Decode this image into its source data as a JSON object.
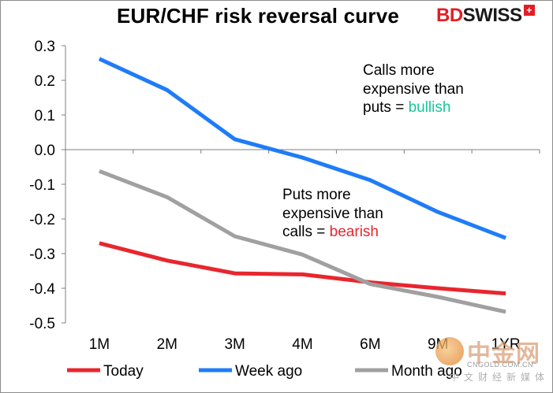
{
  "chart_data": {
    "type": "line",
    "title": "EUR/CHF risk reversal curve",
    "categories": [
      "1M",
      "2M",
      "3M",
      "4M",
      "6M",
      "9M",
      "1YR"
    ],
    "ylim": [
      -0.5,
      0.3
    ],
    "yticks": [
      "0.3",
      "0.2",
      "0.1",
      "0.0",
      "-0.1",
      "-0.2",
      "-0.3",
      "-0.4",
      "-0.5"
    ],
    "ytick_values": [
      0.3,
      0.2,
      0.1,
      0.0,
      -0.1,
      -0.2,
      -0.3,
      -0.4,
      -0.5
    ],
    "series": [
      {
        "name": "Today",
        "color": "#e8262e",
        "values": [
          -0.27,
          -0.32,
          -0.357,
          -0.36,
          -0.383,
          -0.4,
          -0.415
        ]
      },
      {
        "name": "Week ago",
        "color": "#1f7cf8",
        "values": [
          0.262,
          0.172,
          0.03,
          -0.023,
          -0.088,
          -0.18,
          -0.255
        ]
      },
      {
        "name": "Month ago",
        "color": "#a0a0a0",
        "values": [
          -0.062,
          -0.137,
          -0.25,
          -0.303,
          -0.388,
          -0.425,
          -0.468
        ]
      }
    ],
    "annotations": {
      "calls_note": {
        "lines": [
          "Calls more",
          "expensive than",
          "puts = "
        ],
        "highlight": "bullish",
        "highlight_color": "#19c59a"
      },
      "puts_note": {
        "lines": [
          "Puts more",
          "expensive than",
          "calls = "
        ],
        "highlight": "bearish",
        "highlight_color": "#e8262e"
      }
    }
  },
  "branding": {
    "logo_bd": "BD",
    "logo_swiss": "SWISS",
    "logo_cross": "+"
  },
  "watermark": {
    "name": "中金网",
    "site": "CNGOLD.COM.CN",
    "tagline": "中文财经新媒体"
  }
}
